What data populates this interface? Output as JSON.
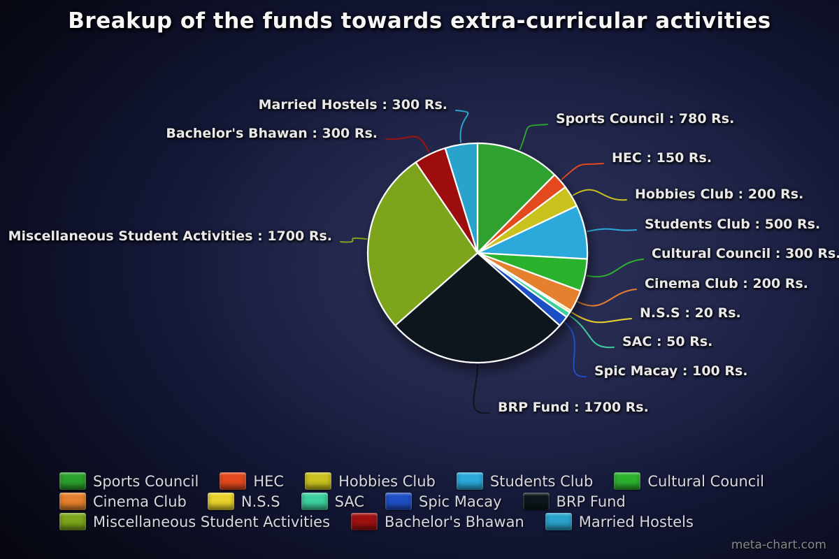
{
  "page": {
    "watermark": "meta-chart.com"
  },
  "chart_data": {
    "type": "pie",
    "title": "Breakup of the funds towards extra-curricular activities",
    "unit_suffix": "Rs.",
    "legend_position": "bottom",
    "start_angle_deg": 0,
    "direction": "clockwise",
    "label_format": "{label} : {value} Rs.",
    "segments": [
      {
        "label": "Sports Council",
        "value": 780,
        "color": "#2da12e"
      },
      {
        "label": "HEC",
        "value": 150,
        "color": "#e2491c"
      },
      {
        "label": "Hobbies Club",
        "value": 200,
        "color": "#c9c11f"
      },
      {
        "label": "Students Club",
        "value": 500,
        "color": "#2aa9da"
      },
      {
        "label": "Cultural Council",
        "value": 300,
        "color": "#2cb12f"
      },
      {
        "label": "Cinema Club",
        "value": 200,
        "color": "#e5812e"
      },
      {
        "label": "N.S.S",
        "value": 20,
        "color": "#e8d22b"
      },
      {
        "label": "SAC",
        "value": 50,
        "color": "#3ecf9e"
      },
      {
        "label": "Spic Macay",
        "value": 100,
        "color": "#1f4fc4"
      },
      {
        "label": "BRP Fund",
        "value": 1700,
        "color": "#0c161c"
      },
      {
        "label": "Miscellaneous Student Activities",
        "value": 1700,
        "color": "#7ca51b"
      },
      {
        "label": "Bachelor's Bhawan",
        "value": 300,
        "color": "#9e1111"
      },
      {
        "label": "Married Hostels",
        "value": 300,
        "color": "#2aa3cc"
      }
    ]
  }
}
